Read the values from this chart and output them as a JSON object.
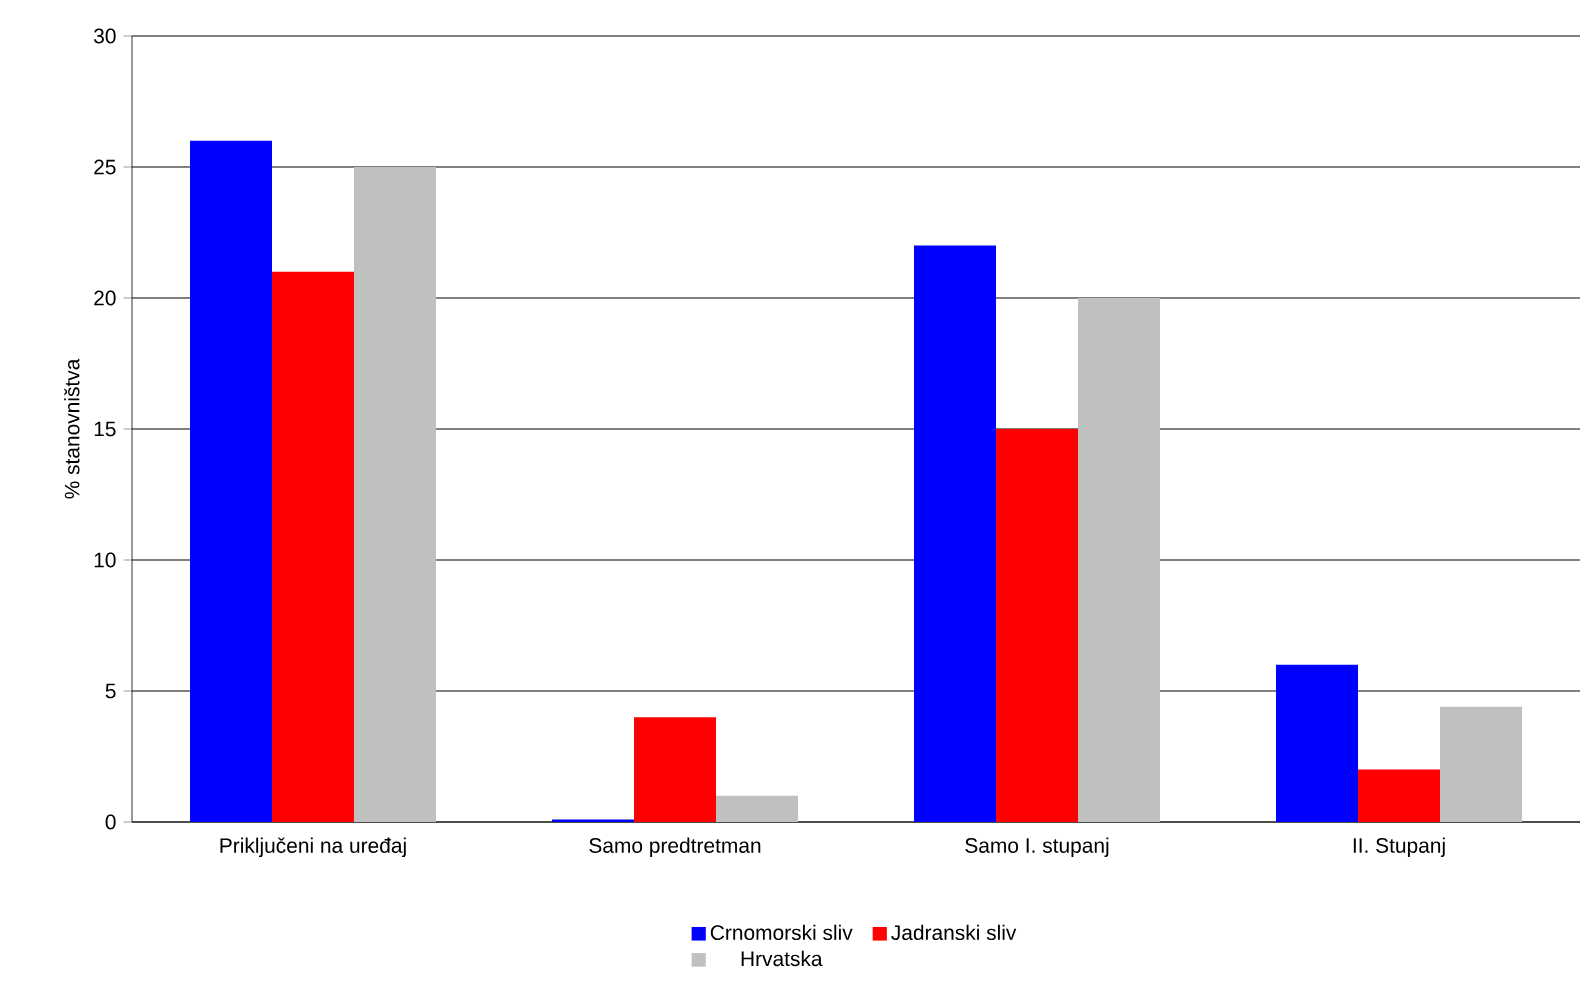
{
  "chart_data": {
    "type": "bar",
    "ylabel": "% stanovništva",
    "categories": [
      "Priključeni na uređaj",
      "Samo predtretman",
      "Samo I. stupanj",
      "II. Stupanj"
    ],
    "series": [
      {
        "name": "Crnomorski sliv",
        "color": "#0000ff",
        "values": [
          26,
          0.1,
          22,
          6
        ]
      },
      {
        "name": "Jadranski sliv",
        "color": "#ff0000",
        "values": [
          21,
          4,
          15,
          2
        ]
      },
      {
        "name": "Hrvatska",
        "color": "#c0c0c0",
        "values": [
          25,
          1,
          20,
          4.4
        ]
      }
    ],
    "ylim": [
      0,
      30
    ],
    "yticks": [
      0,
      5,
      10,
      15,
      20,
      25,
      30
    ],
    "grid": "y",
    "legend": "bottom"
  }
}
